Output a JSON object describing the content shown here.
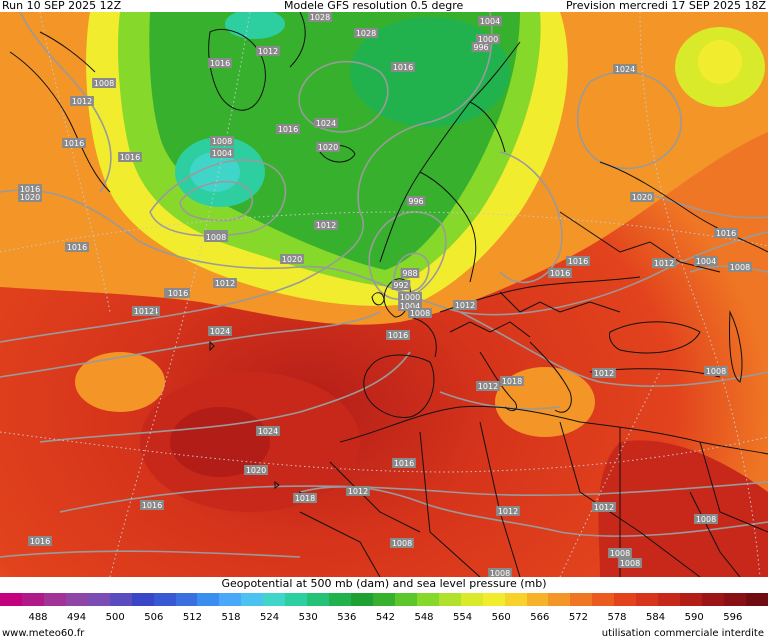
{
  "header": {
    "run": "Run 10 SEP 2025 12Z",
    "model": "Modele GFS resolution 0.5 degre",
    "forecast": "Prevision mercredi 17 SEP 2025 18Z"
  },
  "legend": {
    "caption": "Geopotential at 500 mb (dam) and sea level pressure (mb)",
    "tick_labels": [
      "488",
      "494",
      "500",
      "506",
      "512",
      "518",
      "524",
      "530",
      "536",
      "542",
      "548",
      "554",
      "560",
      "566",
      "572",
      "578",
      "584",
      "590",
      "596"
    ],
    "colors": [
      "#c3007d",
      "#b01a88",
      "#a23396",
      "#8f45a5",
      "#7c4cb5",
      "#5a4bbf",
      "#3a46c8",
      "#3958d3",
      "#3a6fe0",
      "#3c8df0",
      "#4aa8f8",
      "#4bc2f0",
      "#3fd6c9",
      "#2dcfa1",
      "#23c277",
      "#21b24e",
      "#1ea033",
      "#37b12d",
      "#5bc72c",
      "#86d82b",
      "#b0e12c",
      "#d9ea2b",
      "#f2ec2e",
      "#f7d12c",
      "#f6b32a",
      "#f39527",
      "#ef7624",
      "#ea5b20",
      "#e2431d",
      "#d6341b",
      "#c7281a",
      "#b31d18",
      "#9d1416",
      "#881014",
      "#6f0b11"
    ]
  },
  "footer": {
    "site": "www.meteo60.fr",
    "notice": "utilisation commerciale interdite"
  },
  "isobar_labels": [
    "1028",
    "1028",
    "1004",
    "1012",
    "1016",
    "1024",
    "1020",
    "996",
    "1000",
    "1016",
    "1024",
    "1008",
    "1012",
    "1016",
    "1016",
    "1008",
    "1004",
    "1016",
    "1016",
    "1020",
    "1020",
    "1024",
    "1004",
    "1008",
    "1012",
    "1016",
    "1000",
    "1004",
    "1008",
    "1012",
    "1016",
    "1016",
    "1012",
    "1016",
    "1020",
    "1024",
    "1008",
    "1012",
    "1016",
    "1016",
    "1012",
    "1018",
    "1012",
    "1008",
    "1012",
    "1020",
    "1024",
    "1016",
    "1012",
    "1008",
    "1018",
    "1016",
    "1012",
    "1008",
    "1008",
    "1008",
    "1020",
    "1016",
    "1012",
    "1008",
    "1012",
    "996",
    "1008",
    "988",
    "992"
  ]
}
